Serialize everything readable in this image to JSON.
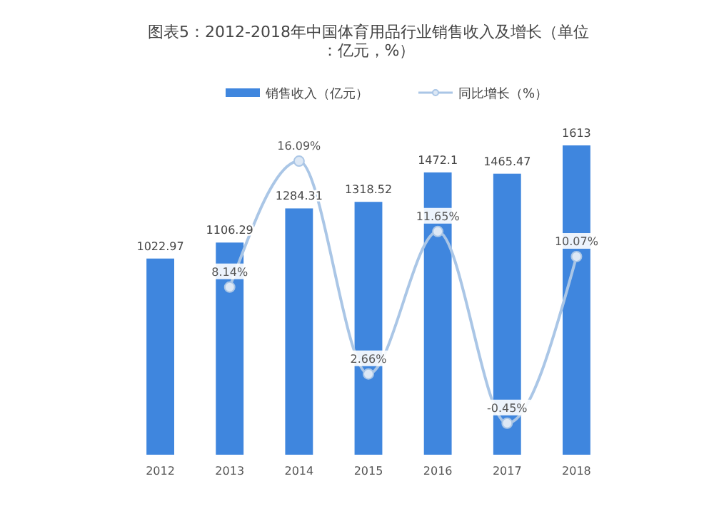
{
  "chart_data": {
    "type": "bar",
    "title": "图表5：2012-2018年中国体育用品行业销售收入及增长（单位：亿元，%）",
    "categories": [
      "2012",
      "2013",
      "2014",
      "2015",
      "2016",
      "2017",
      "2018"
    ],
    "legend": "top",
    "marker": "circle",
    "series": [
      {
        "name": "销售收入（亿元）",
        "color": "#3f86de",
        "values": [
          1022.97,
          1106.29,
          1284.31,
          1318.52,
          1472.1,
          1465.47,
          1613
        ],
        "value_labels": [
          "1022.97",
          "1106.29",
          "1284.31",
          "1318.52",
          "1472.1",
          "1465.47",
          "1613"
        ]
      },
      {
        "name": "同比增长（%）",
        "type": "line",
        "axis": "y2",
        "color": "#aac6e6",
        "values": [
          null,
          8.14,
          16.09,
          2.66,
          11.65,
          -0.45,
          10.07
        ],
        "value_labels": [
          null,
          "8.14%",
          "16.09%",
          "2.66%",
          "11.65%",
          "-0.45%",
          "10.07%"
        ]
      }
    ]
  }
}
